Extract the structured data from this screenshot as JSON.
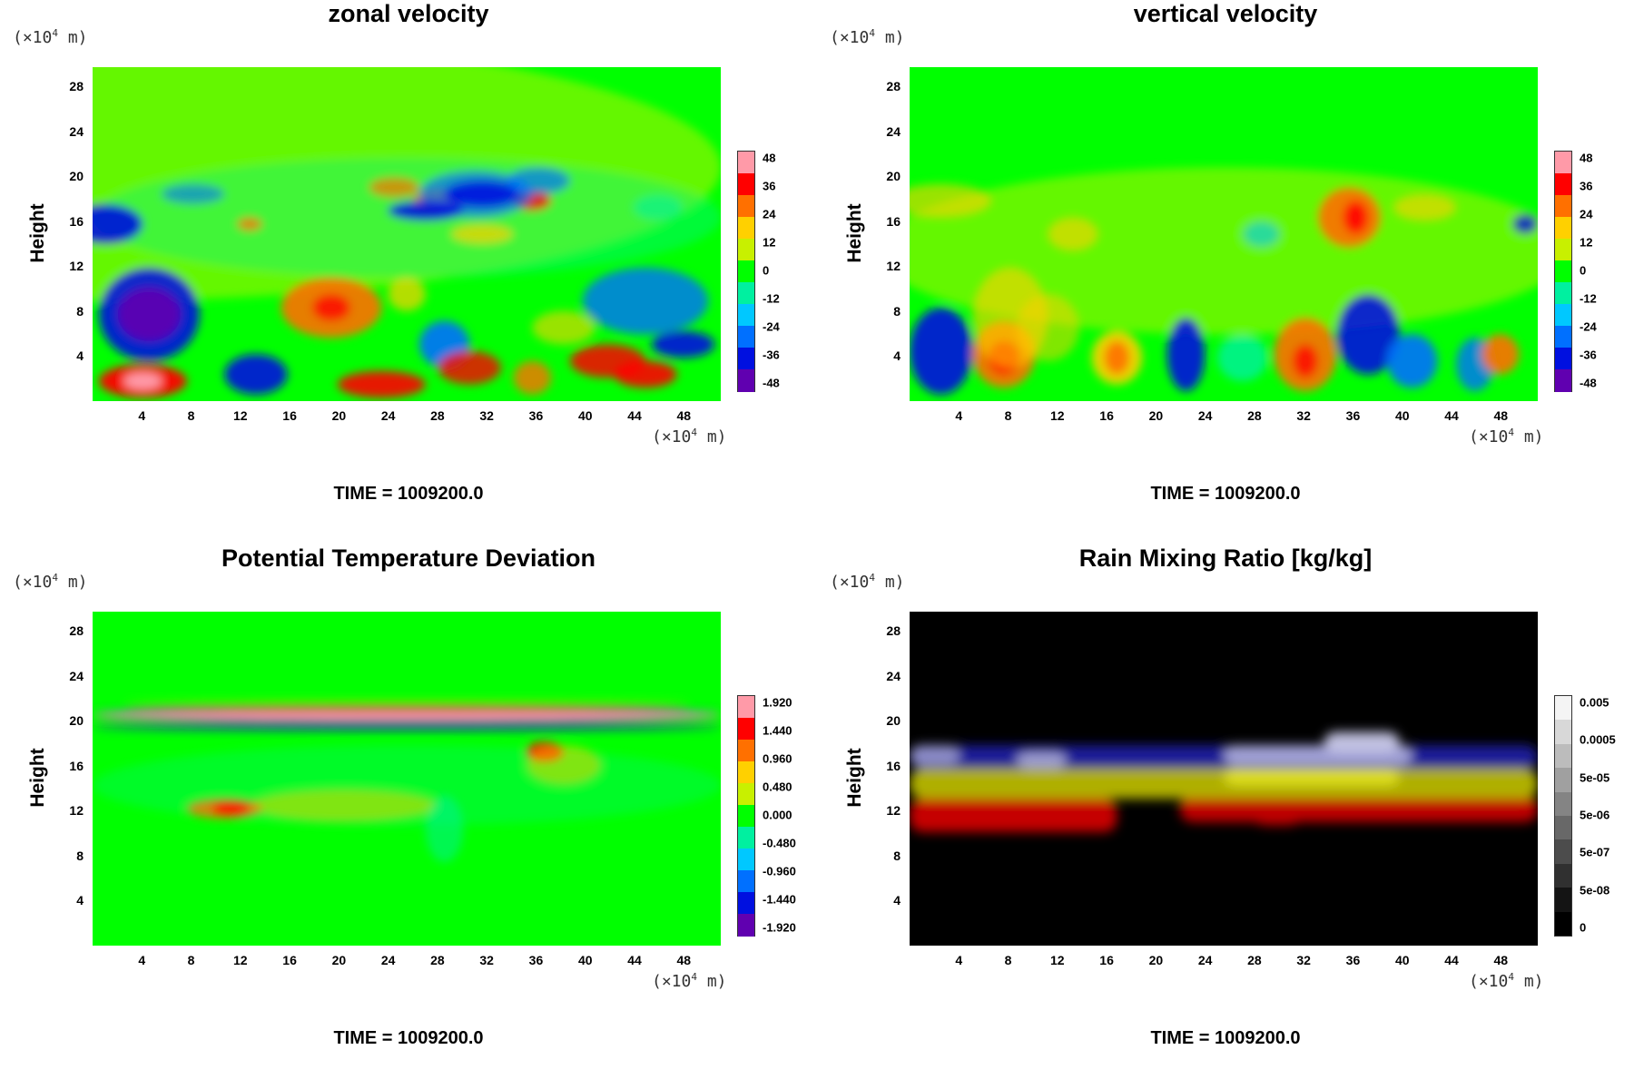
{
  "time_label": "TIME = 1009200.0",
  "chart_data": [
    {
      "type": "heatmap",
      "title": "zonal velocity",
      "ylabel": "Height",
      "xlabel": "",
      "x_unit": "(×10^4 m)",
      "y_unit": "(×10^4 m)",
      "x_ticks": [
        "4",
        "8",
        "12",
        "16",
        "20",
        "24",
        "28",
        "32",
        "36",
        "40",
        "44",
        "48"
      ],
      "y_ticks": [
        "4",
        "8",
        "12",
        "16",
        "20",
        "24",
        "28"
      ],
      "xlim": [
        0,
        51
      ],
      "ylim": [
        0,
        29.7
      ],
      "colorbar_ticks": [
        "48",
        "36",
        "24",
        "12",
        "0",
        "-12",
        "-24",
        "-36",
        "-48"
      ],
      "colormap": "rainbow",
      "colors": [
        "#ff9aa8",
        "#ff0000",
        "#ff7000",
        "#ffd000",
        "#c8f000",
        "#00ff00",
        "#00f0a0",
        "#00c8ff",
        "#0070ff",
        "#0010e0",
        "#6000b0"
      ],
      "time": "TIME = 1009200.0"
    },
    {
      "type": "heatmap",
      "title": "vertical velocity",
      "ylabel": "Height",
      "xlabel": "",
      "x_unit": "(×10^4 m)",
      "y_unit": "(×10^4 m)",
      "x_ticks": [
        "4",
        "8",
        "12",
        "16",
        "20",
        "24",
        "28",
        "32",
        "36",
        "40",
        "44",
        "48"
      ],
      "y_ticks": [
        "4",
        "8",
        "12",
        "16",
        "20",
        "24",
        "28"
      ],
      "xlim": [
        0,
        51
      ],
      "ylim": [
        0,
        29.7
      ],
      "colorbar_ticks": [
        "48",
        "36",
        "24",
        "12",
        "0",
        "-12",
        "-24",
        "-36",
        "-48"
      ],
      "colormap": "rainbow",
      "colors": [
        "#ff9aa8",
        "#ff0000",
        "#ff7000",
        "#ffd000",
        "#c8f000",
        "#00ff00",
        "#00f0a0",
        "#00c8ff",
        "#0070ff",
        "#0010e0",
        "#6000b0"
      ],
      "time": "TIME = 1009200.0"
    },
    {
      "type": "heatmap",
      "title": "Potential Temperature Deviation",
      "ylabel": "Height",
      "xlabel": "",
      "x_unit": "(×10^4 m)",
      "y_unit": "(×10^4 m)",
      "x_ticks": [
        "4",
        "8",
        "12",
        "16",
        "20",
        "24",
        "28",
        "32",
        "36",
        "40",
        "44",
        "48"
      ],
      "y_ticks": [
        "4",
        "8",
        "12",
        "16",
        "20",
        "24",
        "28"
      ],
      "xlim": [
        0,
        51
      ],
      "ylim": [
        0,
        29.7
      ],
      "colorbar_ticks": [
        "1.920",
        "1.440",
        "0.960",
        "0.480",
        "0.000",
        "-0.480",
        "-0.960",
        "-1.440",
        "-1.920"
      ],
      "colormap": "rainbow",
      "colors": [
        "#ff9aa8",
        "#ff0000",
        "#ff7000",
        "#ffd000",
        "#c8f000",
        "#00ff00",
        "#00f0a0",
        "#00c8ff",
        "#0070ff",
        "#0010e0",
        "#6000b0"
      ],
      "time": "TIME = 1009200.0"
    },
    {
      "type": "heatmap",
      "title": "Rain Mixing Ratio [kg/kg]",
      "ylabel": "Height",
      "xlabel": "",
      "x_unit": "(×10^4 m)",
      "y_unit": "(×10^4 m)",
      "x_ticks": [
        "4",
        "8",
        "12",
        "16",
        "20",
        "24",
        "28",
        "32",
        "36",
        "40",
        "44",
        "48"
      ],
      "y_ticks": [
        "4",
        "8",
        "12",
        "16",
        "20",
        "24",
        "28"
      ],
      "xlim": [
        0,
        51
      ],
      "ylim": [
        0,
        29.7
      ],
      "colorbar_ticks": [
        "0.005",
        "0.0005",
        "5e-05",
        "5e-06",
        "5e-07",
        "5e-08",
        "0"
      ],
      "colormap": "grayscale",
      "colors": [
        "#f4f4f4",
        "#d8d8d8",
        "#bcbcbc",
        "#a0a0a0",
        "#848484",
        "#686868",
        "#4c4c4c",
        "#303030",
        "#141414",
        "#000000"
      ],
      "time": "TIME = 1009200.0"
    }
  ]
}
